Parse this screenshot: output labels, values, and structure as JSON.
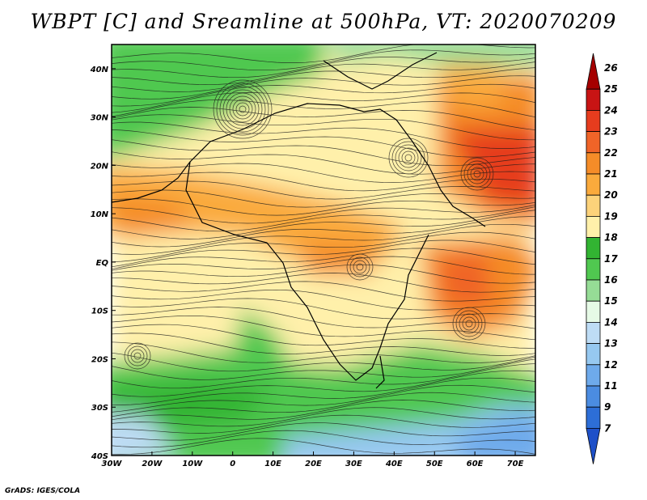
{
  "title": "WBPT [C] and Sreamline at 500hPa, VT: 2020070209",
  "footer": "GrADS: IGES/COLA",
  "map": {
    "lon_range": [
      -30,
      75
    ],
    "lat_range": [
      -40,
      45
    ],
    "lon_ticks": [
      {
        "value": -30,
        "label": "30W"
      },
      {
        "value": -20,
        "label": "20W"
      },
      {
        "value": -10,
        "label": "10W"
      },
      {
        "value": 0,
        "label": "0"
      },
      {
        "value": 10,
        "label": "10E"
      },
      {
        "value": 20,
        "label": "20E"
      },
      {
        "value": 30,
        "label": "30E"
      },
      {
        "value": 40,
        "label": "40E"
      },
      {
        "value": 50,
        "label": "50E"
      },
      {
        "value": 60,
        "label": "60E"
      },
      {
        "value": 70,
        "label": "70E"
      }
    ],
    "lat_ticks": [
      {
        "value": 40,
        "label": "40N"
      },
      {
        "value": 30,
        "label": "30N"
      },
      {
        "value": 20,
        "label": "20N"
      },
      {
        "value": 10,
        "label": "10N"
      },
      {
        "value": 0,
        "label": "EQ"
      },
      {
        "value": -10,
        "label": "10S"
      },
      {
        "value": -20,
        "label": "20S"
      },
      {
        "value": -30,
        "label": "30S"
      },
      {
        "value": -40,
        "label": "40S"
      }
    ]
  },
  "colorbar": {
    "labels": [
      "26",
      "25",
      "24",
      "23",
      "22",
      "21",
      "20",
      "19",
      "18",
      "17",
      "16",
      "15",
      "14",
      "13",
      "12",
      "11",
      "9",
      "7"
    ],
    "colors": [
      "#a50000",
      "#c81414",
      "#e63c1e",
      "#f06428",
      "#f58c28",
      "#faaa3c",
      "#fcd27a",
      "#fff0aa",
      "#32b432",
      "#50c850",
      "#96dc96",
      "#e6fae6",
      "#bedcf5",
      "#96c8f0",
      "#6eaaeb",
      "#4b8ce1",
      "#2d6ed7",
      "#1e50c8"
    ]
  }
}
